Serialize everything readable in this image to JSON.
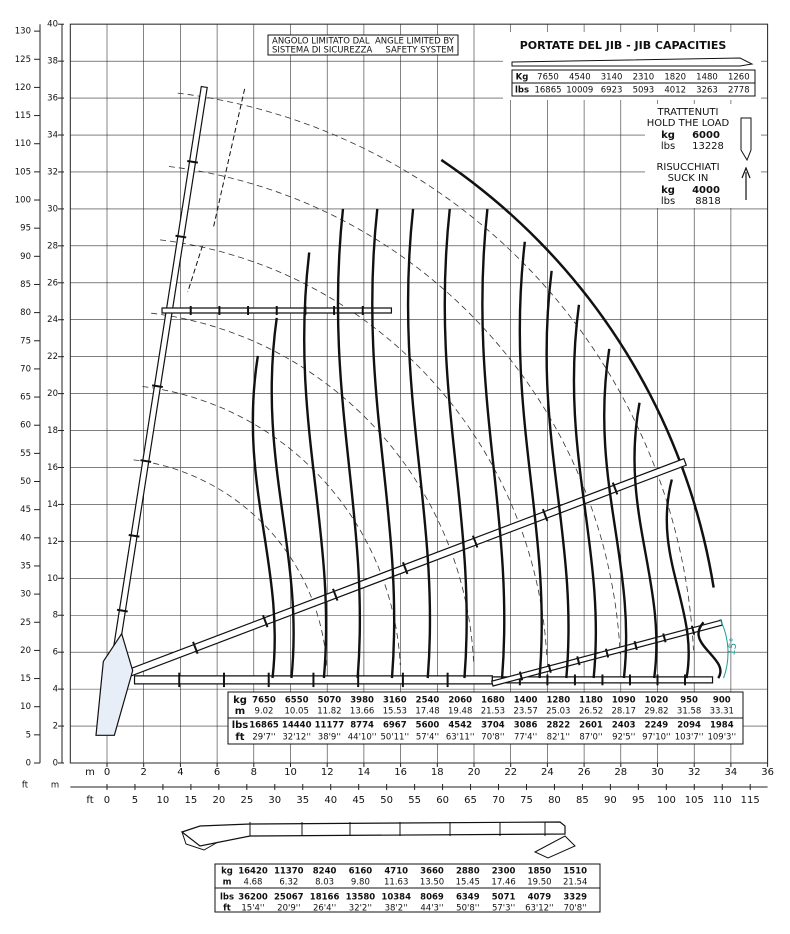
{
  "chart_data": {
    "type": "load-chart",
    "xlim": [
      -2,
      36
    ],
    "xticks": [
      0,
      2,
      4,
      6,
      8,
      10,
      12,
      14,
      16,
      18,
      20,
      22,
      24,
      26,
      28,
      30,
      32,
      34,
      36
    ],
    "x_unit": "m",
    "x2lim": [
      -6.56,
      118.11
    ],
    "x2ticks": [
      0,
      5,
      10,
      15,
      20,
      25,
      30,
      35,
      40,
      45,
      50,
      55,
      60,
      65,
      70,
      75,
      80,
      85,
      90,
      95,
      100,
      105,
      110,
      115
    ],
    "x2_unit": "ft",
    "ylim": [
      0,
      40
    ],
    "yticks": [
      0,
      2,
      4,
      6,
      8,
      10,
      12,
      14,
      16,
      18,
      20,
      22,
      24,
      26,
      28,
      30,
      32,
      34,
      36,
      38,
      40
    ],
    "y_unit": "m",
    "y2lim": [
      0,
      131.23
    ],
    "y2ticks": [
      0,
      5,
      10,
      15,
      20,
      25,
      30,
      35,
      40,
      45,
      50,
      55,
      60,
      65,
      70,
      75,
      80,
      85,
      90,
      95,
      100,
      105,
      110,
      115,
      120,
      125,
      130
    ],
    "y2_unit": "ft",
    "grid": true,
    "angle_label": "15°",
    "load_table": {
      "row_labels": [
        "kg",
        "m",
        "lbs",
        "ft"
      ],
      "kg": [
        7650,
        6550,
        5070,
        3980,
        3160,
        2540,
        2060,
        1680,
        1400,
        1280,
        1180,
        1090,
        1020,
        950,
        900
      ],
      "m": [
        9.02,
        10.05,
        11.82,
        13.66,
        15.53,
        17.48,
        19.48,
        21.53,
        23.57,
        25.03,
        26.52,
        28.17,
        29.82,
        31.58,
        33.31
      ],
      "lbs": [
        16865,
        14440,
        11177,
        8774,
        6967,
        5600,
        4542,
        3704,
        3086,
        2822,
        2601,
        2403,
        2249,
        2094,
        1984
      ],
      "ft": [
        "29'7''",
        "32'12''",
        "38'9''",
        "44'10''",
        "50'11''",
        "57'4''",
        "63'11''",
        "70'8''",
        "77'4''",
        "82'1''",
        "87'0''",
        "92'5''",
        "97'10''",
        "103'7''",
        "109'3''"
      ]
    }
  },
  "angle_note": {
    "it": [
      "ANGOLO LIMITATO DAL",
      "SISTEMA DI SICUREZZA"
    ],
    "en": [
      "ANGLE LIMITED BY",
      "SAFETY SYSTEM"
    ]
  },
  "jib_capacities": {
    "title": "PORTATE DEL JIB  -  JIB CAPACITIES",
    "row_labels": [
      "Kg",
      "lbs"
    ],
    "kg": [
      7650,
      4540,
      3140,
      2310,
      1820,
      1480,
      1260
    ],
    "lbs": [
      16865,
      10009,
      6923,
      5093,
      4012,
      3263,
      2778
    ]
  },
  "hold_load": {
    "title": [
      "TRATTENUTI",
      "HOLD THE LOAD"
    ],
    "kg_label": "kg",
    "kg": 6000,
    "lbs_label": "lbs",
    "lbs": 13228
  },
  "suck_in": {
    "title": [
      "RISUCCHIATI",
      "SUCK IN"
    ],
    "kg_label": "kg",
    "kg": 4000,
    "lbs_label": "lbs",
    "lbs": 8818
  },
  "boom_table": {
    "row_labels": [
      "kg",
      "m",
      "lbs",
      "ft"
    ],
    "kg": [
      16420,
      11370,
      8240,
      6160,
      4710,
      3660,
      2880,
      2300,
      1850,
      1510
    ],
    "m": [
      "4.68",
      "6.32",
      "8.03",
      "9.80",
      "11.63",
      "13.50",
      "15.45",
      "17.46",
      "19.50",
      "21.54"
    ],
    "lbs": [
      36200,
      25067,
      18166,
      13580,
      10384,
      8069,
      6349,
      5071,
      4079,
      3329
    ],
    "ft": [
      "15'4''",
      "20'9''",
      "26'4''",
      "32'2''",
      "38'2''",
      "44'3''",
      "50'8''",
      "57'3''",
      "63'12''",
      "70'8''"
    ]
  }
}
